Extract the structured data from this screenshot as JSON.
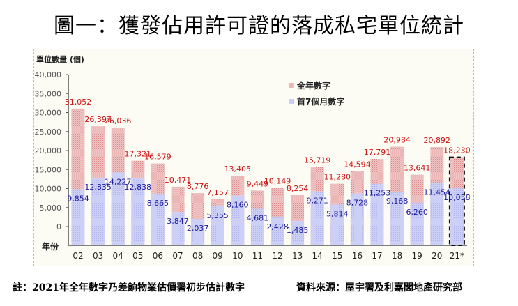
{
  "title": "圖一：獲發佔用許可證的落成私宅單位統計",
  "footnote": "註：2021年全年數字乃差餉物業估價署初步估計數字",
  "source": "資料來源：屋宇署及利嘉閣地產研究部",
  "colors": {
    "full_year": "#e8a8a8",
    "first7": "#c4c8f4",
    "full_label": "#d01010",
    "first7_label": "#1a1aa0"
  },
  "chart_data": {
    "type": "bar",
    "title": "圖一：獲發佔用許可證的落成私宅單位統計",
    "ylabel": "單位數量 (個)",
    "xlabel": "年份",
    "ylim": [
      0,
      40000
    ],
    "yticks": [
      "40,000",
      "35,000",
      "30,000",
      "25,000",
      "20,000",
      "15,000",
      "10,000",
      "5,000",
      "0"
    ],
    "ytick_values": [
      40000,
      35000,
      30000,
      25000,
      20000,
      15000,
      10000,
      5000,
      0
    ],
    "legend_position": "top-right",
    "categories": [
      "02",
      "03",
      "04",
      "05",
      "06",
      "07",
      "08",
      "09",
      "10",
      "11",
      "12",
      "13",
      "14",
      "15",
      "16",
      "17",
      "18",
      "19",
      "20",
      "21*"
    ],
    "series": [
      {
        "name": "全年數字",
        "values": [
          31052,
          26397,
          26036,
          17321,
          16579,
          10471,
          8776,
          7157,
          13405,
          9449,
          10149,
          8254,
          15719,
          11280,
          14594,
          17791,
          20984,
          13641,
          20892,
          18230
        ],
        "labels": [
          "31,052",
          "26,397",
          "26,036",
          "17,321",
          "16,579",
          "10,471",
          "8,776",
          "7,157",
          "13,405",
          "9,449",
          "10,149",
          "8,254",
          "15,719",
          "11,280",
          "14,594",
          "17,791",
          "20,984",
          "13,641",
          "20,892",
          "18,230"
        ]
      },
      {
        "name": "首7個月數字",
        "values": [
          9854,
          12835,
          14227,
          12838,
          8665,
          3847,
          2037,
          5355,
          8160,
          4681,
          2428,
          1485,
          9271,
          5814,
          8728,
          11253,
          9168,
          6260,
          11454,
          10058
        ],
        "labels": [
          "9,854",
          "12,835",
          "14,227",
          "12,838",
          "8,665",
          "3,847",
          "2,037",
          "5,355",
          "8,160",
          "4,681",
          "2,428",
          "1,485",
          "9,271",
          "5,814",
          "8,728",
          "11,253",
          "9,168",
          "6,260",
          "11,454",
          "10,058"
        ]
      }
    ],
    "annotations": [
      "2021 bar estimated (dashed outline)"
    ]
  }
}
